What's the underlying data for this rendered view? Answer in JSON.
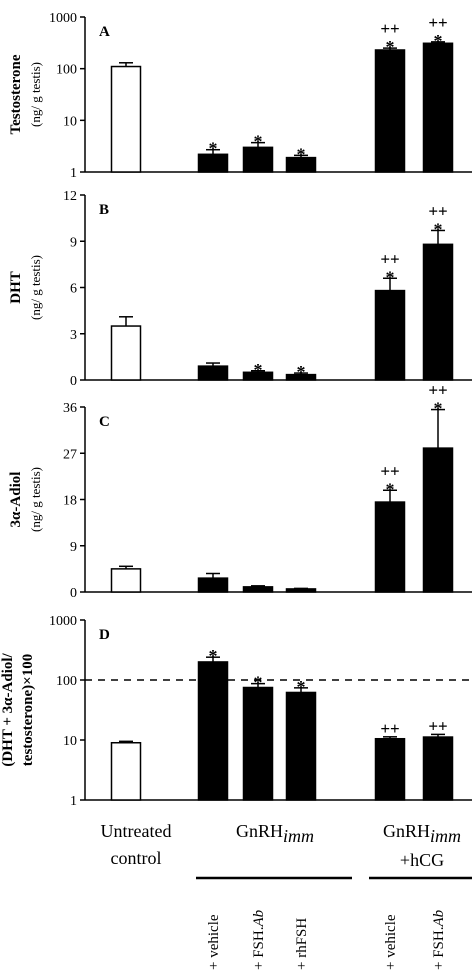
{
  "chart_data": [
    {
      "panel": "A",
      "type": "bar",
      "scale": "log",
      "ylim": [
        1,
        1000
      ],
      "yticks": [
        "1",
        "10",
        "100",
        "1000"
      ],
      "ylabel_bold": "Testosterone",
      "ylabel_unit": "(ng/ g testis)",
      "bars": [
        {
          "slot": 0,
          "value": 110,
          "error": 20,
          "fill": "white",
          "sig_star": "",
          "sig_plus": ""
        },
        {
          "slot": 1,
          "value": 2.2,
          "error": 0.5,
          "fill": "black",
          "sig_star": "*",
          "sig_plus": ""
        },
        {
          "slot": 2,
          "value": 3.0,
          "error": 0.7,
          "fill": "black",
          "sig_star": "*",
          "sig_plus": ""
        },
        {
          "slot": 3,
          "value": 1.9,
          "error": 0.2,
          "fill": "black",
          "sig_star": "*",
          "sig_plus": ""
        },
        {
          "slot": 4,
          "value": 230,
          "error": 20,
          "fill": "black",
          "sig_star": "*",
          "sig_plus": "++"
        },
        {
          "slot": 5,
          "value": 310,
          "error": 20,
          "fill": "black",
          "sig_star": "*",
          "sig_plus": "++"
        }
      ]
    },
    {
      "panel": "B",
      "type": "bar",
      "scale": "linear",
      "ylim": [
        0,
        12
      ],
      "yticks": [
        "0",
        "3",
        "6",
        "9",
        "12"
      ],
      "ylabel_bold": "DHT",
      "ylabel_unit": "(ng/ g testis)",
      "bars": [
        {
          "slot": 0,
          "value": 3.5,
          "error": 0.6,
          "fill": "white",
          "sig_star": "",
          "sig_plus": ""
        },
        {
          "slot": 1,
          "value": 0.9,
          "error": 0.2,
          "fill": "black",
          "sig_star": "",
          "sig_plus": ""
        },
        {
          "slot": 2,
          "value": 0.5,
          "error": 0.1,
          "fill": "black",
          "sig_star": "*",
          "sig_plus": ""
        },
        {
          "slot": 3,
          "value": 0.35,
          "error": 0.1,
          "fill": "black",
          "sig_star": "*",
          "sig_plus": ""
        },
        {
          "slot": 4,
          "value": 5.8,
          "error": 0.8,
          "fill": "black",
          "sig_star": "*",
          "sig_plus": "++"
        },
        {
          "slot": 5,
          "value": 8.8,
          "error": 0.9,
          "fill": "black",
          "sig_star": "*",
          "sig_plus": "++"
        }
      ]
    },
    {
      "panel": "C",
      "type": "bar",
      "scale": "linear",
      "ylim": [
        0,
        36
      ],
      "yticks": [
        "0",
        "9",
        "18",
        "27",
        "36"
      ],
      "ylabel_bold": "3α-Adiol",
      "ylabel_unit": "(ng/ g testis)",
      "bars": [
        {
          "slot": 0,
          "value": 4.5,
          "error": 0.5,
          "fill": "white",
          "sig_star": "",
          "sig_plus": ""
        },
        {
          "slot": 1,
          "value": 2.7,
          "error": 0.9,
          "fill": "black",
          "sig_star": "",
          "sig_plus": ""
        },
        {
          "slot": 2,
          "value": 1.0,
          "error": 0.2,
          "fill": "black",
          "sig_star": "",
          "sig_plus": ""
        },
        {
          "slot": 3,
          "value": 0.6,
          "error": 0.1,
          "fill": "black",
          "sig_star": "",
          "sig_plus": ""
        },
        {
          "slot": 4,
          "value": 17.5,
          "error": 2.3,
          "fill": "black",
          "sig_star": "*",
          "sig_plus": "++"
        },
        {
          "slot": 5,
          "value": 28,
          "error": 7.5,
          "fill": "black",
          "sig_star": "*",
          "sig_plus": "++"
        }
      ]
    },
    {
      "panel": "D",
      "type": "bar",
      "scale": "log",
      "ylim": [
        1,
        1000
      ],
      "yticks": [
        "1",
        "10",
        "100",
        "1000"
      ],
      "ylabel_bold": "(DHT + 3α-Adiol/",
      "ylabel_bold2": "testosterone)×100",
      "reference_line": 100,
      "bars": [
        {
          "slot": 0,
          "value": 9,
          "error": 0.5,
          "fill": "white",
          "sig_star": "",
          "sig_plus": ""
        },
        {
          "slot": 1,
          "value": 200,
          "error": 40,
          "fill": "black",
          "sig_star": "*",
          "sig_plus": ""
        },
        {
          "slot": 2,
          "value": 75,
          "error": 12,
          "fill": "black",
          "sig_star": "*",
          "sig_plus": ""
        },
        {
          "slot": 3,
          "value": 62,
          "error": 12,
          "fill": "black",
          "sig_star": "*",
          "sig_plus": ""
        },
        {
          "slot": 4,
          "value": 10.5,
          "error": 0.8,
          "fill": "black",
          "sig_star": "",
          "sig_plus": "++"
        },
        {
          "slot": 5,
          "value": 11.2,
          "error": 1.2,
          "fill": "black",
          "sig_star": "",
          "sig_plus": "++"
        }
      ]
    }
  ],
  "groups": {
    "untreated_line1": "Untreated",
    "untreated_line2": "control",
    "gnrh_main": "GnRH",
    "gnrh_sub": "imm",
    "gnrh_hcg_main": "GnRH",
    "gnrh_hcg_sub": "imm",
    "gnrh_hcg_line2": "+hCG"
  },
  "treatments": [
    {
      "plain": "+ vehicle",
      "italic": ""
    },
    {
      "plain": "+ FSH.",
      "italic": "Ab"
    },
    {
      "plain": "+ rhFSH",
      "italic": ""
    },
    {
      "plain": "+ vehicle",
      "italic": ""
    },
    {
      "plain": "+ FSH.",
      "italic": "Ab"
    }
  ]
}
